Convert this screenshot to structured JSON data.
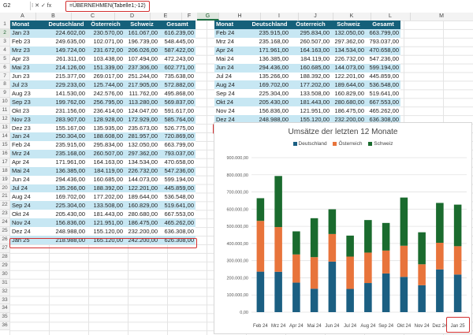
{
  "namebox": "G2",
  "formula_icons": "⁝  ✕  ✓  fx",
  "formula": "=ÜBERNEHMEN(Tabelle1;-12)",
  "columns": [
    "A",
    "B",
    "C",
    "D",
    "E",
    "F",
    "G",
    "H",
    "I",
    "J",
    "K",
    "L",
    "M"
  ],
  "rows": [
    "1",
    "2",
    "3",
    "4",
    "5",
    "6",
    "7",
    "8",
    "9",
    "10",
    "11",
    "12",
    "13",
    "14",
    "15",
    "16",
    "17",
    "18",
    "19",
    "20",
    "21",
    "22",
    "23",
    "24",
    "25",
    "26",
    "27",
    "28",
    "29",
    "30",
    "31",
    "32",
    "33",
    "34",
    "35",
    "36"
  ],
  "headers": [
    "Monat",
    "Deutschland",
    "Österreich",
    "Schweiz",
    "Gesamt"
  ],
  "table1": [
    [
      "Jan 23",
      "224.602,00",
      "230.570,00",
      "161.067,00",
      "616.239,00"
    ],
    [
      "Feb 23",
      "249.635,00",
      "102.071,00",
      "196.739,00",
      "548.445,00"
    ],
    [
      "Mrz 23",
      "149.724,00",
      "231.672,00",
      "206.026,00",
      "587.422,00"
    ],
    [
      "Apr 23",
      "261.311,00",
      "103.438,00",
      "107.494,00",
      "472.243,00"
    ],
    [
      "Mai 23",
      "214.126,00",
      "151.339,00",
      "237.306,00",
      "602.771,00"
    ],
    [
      "Jun 23",
      "215.377,00",
      "269.017,00",
      "251.244,00",
      "735.638,00"
    ],
    [
      "Jul 23",
      "229.233,00",
      "125.744,00",
      "217.905,00",
      "572.882,00"
    ],
    [
      "Aug 23",
      "141.530,00",
      "242.576,00",
      "111.762,00",
      "495.868,00"
    ],
    [
      "Sep 23",
      "199.762,00",
      "256.795,00",
      "113.280,00",
      "569.837,00"
    ],
    [
      "Okt 23",
      "231.156,00",
      "236.414,00",
      "124.047,00",
      "591.617,00"
    ],
    [
      "Nov 23",
      "283.907,00",
      "128.928,00",
      "172.929,00",
      "585.764,00"
    ],
    [
      "Dez 23",
      "155.167,00",
      "135.935,00",
      "235.673,00",
      "526.775,00"
    ],
    [
      "Jan 24",
      "250.304,00",
      "188.608,00",
      "281.957,00",
      "720.869,00"
    ],
    [
      "Feb 24",
      "235.915,00",
      "295.834,00",
      "132.050,00",
      "663.799,00"
    ],
    [
      "Mrz 24",
      "235.168,00",
      "260.507,00",
      "297.362,00",
      "793.037,00"
    ],
    [
      "Apr 24",
      "171.961,00",
      "164.163,00",
      "134.534,00",
      "470.658,00"
    ],
    [
      "Mai 24",
      "136.385,00",
      "184.119,00",
      "226.732,00",
      "547.236,00"
    ],
    [
      "Jun 24",
      "294.436,00",
      "160.685,00",
      "144.073,00",
      "599.194,00"
    ],
    [
      "Jul 24",
      "135.266,00",
      "188.392,00",
      "122.201,00",
      "445.859,00"
    ],
    [
      "Aug 24",
      "169.702,00",
      "177.202,00",
      "189.644,00",
      "536.548,00"
    ],
    [
      "Sep 24",
      "225.304,00",
      "133.508,00",
      "160.829,00",
      "519.641,00"
    ],
    [
      "Okt 24",
      "205.430,00",
      "181.443,00",
      "280.680,00",
      "667.553,00"
    ],
    [
      "Nov 24",
      "156.836,00",
      "121.951,00",
      "186.475,00",
      "465.262,00"
    ],
    [
      "Dez 24",
      "248.988,00",
      "155.120,00",
      "232.200,00",
      "636.308,00"
    ],
    [
      "Jan 25",
      "218.988,00",
      "165.120,00",
      "242.200,00",
      "626.308,00"
    ]
  ],
  "table2": [
    [
      "Feb 24",
      "235.915,00",
      "295.834,00",
      "132.050,00",
      "663.799,00"
    ],
    [
      "Mrz 24",
      "235.168,00",
      "260.507,00",
      "297.362,00",
      "793.037,00"
    ],
    [
      "Apr 24",
      "171.961,00",
      "164.163,00",
      "134.534,00",
      "470.658,00"
    ],
    [
      "Mai 24",
      "136.385,00",
      "184.119,00",
      "226.732,00",
      "547.236,00"
    ],
    [
      "Jun 24",
      "294.436,00",
      "160.685,00",
      "144.073,00",
      "599.194,00"
    ],
    [
      "Jul 24",
      "135.266,00",
      "188.392,00",
      "122.201,00",
      "445.859,00"
    ],
    [
      "Aug 24",
      "169.702,00",
      "177.202,00",
      "189.644,00",
      "536.548,00"
    ],
    [
      "Sep 24",
      "225.304,00",
      "133.508,00",
      "160.829,00",
      "519.641,00"
    ],
    [
      "Okt 24",
      "205.430,00",
      "181.443,00",
      "280.680,00",
      "667.553,00"
    ],
    [
      "Nov 24",
      "156.836,00",
      "121.951,00",
      "186.475,00",
      "465.262,00"
    ],
    [
      "Dez 24",
      "248.988,00",
      "155.120,00",
      "232.200,00",
      "636.308,00"
    ],
    [
      "Jan 25",
      "218.988,00",
      "165.120,00",
      "242.200,00",
      "626.308,00"
    ]
  ],
  "colors": {
    "header": "#15607a",
    "band": "#c7e7f3",
    "deutschland": "#1b5f82",
    "oesterreich": "#e8743b",
    "schweiz": "#1a6b2e",
    "highlight": "#d32f2f"
  },
  "chart_data": {
    "type": "bar",
    "stacked": true,
    "title": "Umsätze der letzten 12 Monate",
    "categories": [
      "Feb 24",
      "Mrz 24",
      "Apr 24",
      "Mai 24",
      "Jun 24",
      "Jul 24",
      "Aug 24",
      "Sep 24",
      "Okt 24",
      "Nov 24",
      "Dez 24",
      "Jan 25"
    ],
    "series": [
      {
        "name": "Deutschland",
        "values": [
          235915,
          235168,
          171961,
          136385,
          294436,
          135266,
          169702,
          225304,
          205430,
          156836,
          248988,
          218988
        ]
      },
      {
        "name": "Österreich",
        "values": [
          295834,
          260507,
          164163,
          184119,
          160685,
          188392,
          177202,
          133508,
          181443,
          121951,
          155120,
          165120
        ]
      },
      {
        "name": "Schweiz",
        "values": [
          132050,
          297362,
          134534,
          226732,
          144073,
          122201,
          189644,
          160829,
          280680,
          186475,
          232200,
          242200
        ]
      }
    ],
    "y_ticks": [
      "0,00",
      "100.000,00",
      "200.000,00",
      "300.000,00",
      "400.000,00",
      "500.000,00",
      "600.000,00",
      "700.000,00",
      "800.000,00",
      "900.000,00"
    ],
    "ylim": [
      0,
      900000
    ],
    "legend": "top",
    "grid": true
  }
}
